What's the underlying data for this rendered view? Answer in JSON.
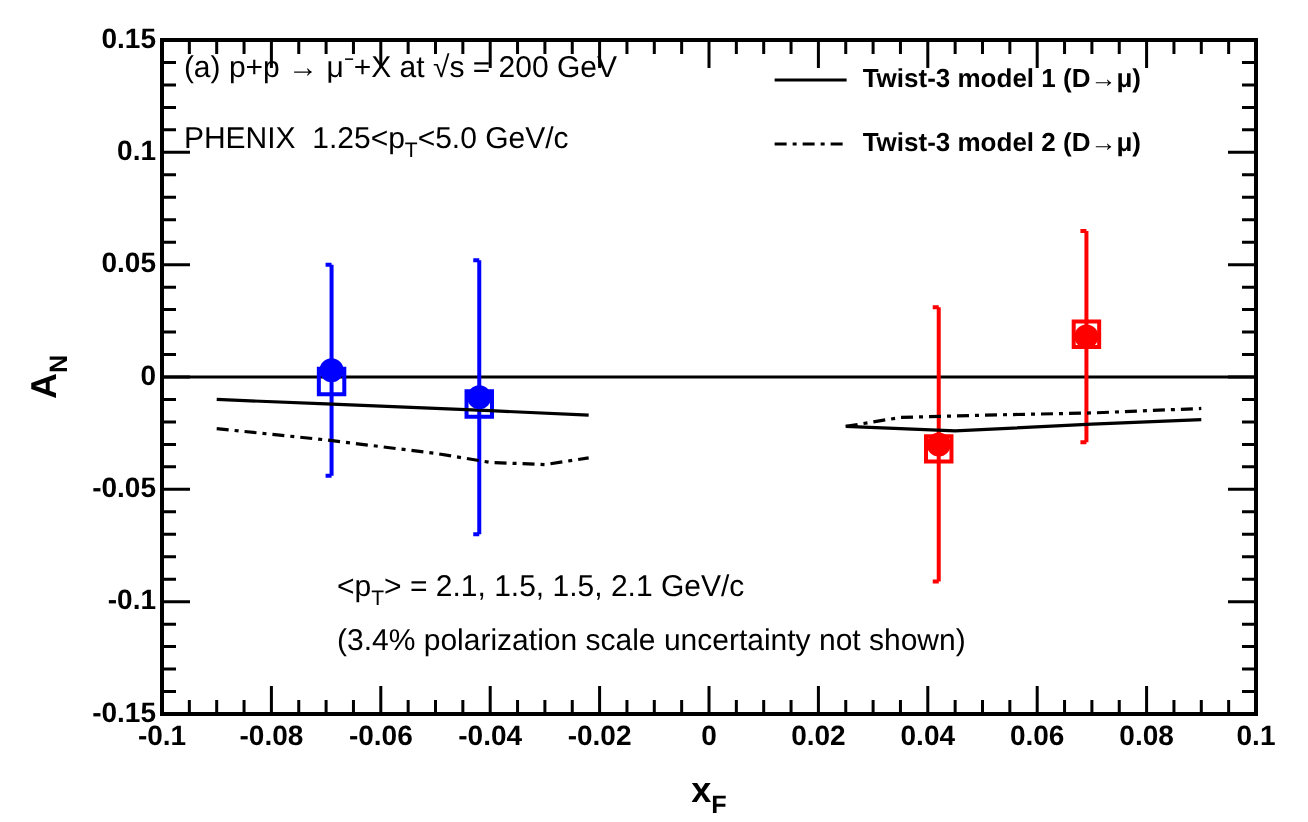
{
  "chart_data": {
    "type": "scatter",
    "xlabel": "x$_{F}$",
    "ylabel": "A$_{N}$",
    "annotations": [
      "(a) p+p → μ⁻+X at √s = 200 GeV",
      "PHENIX  1.25<p$_{T}$<5.0 GeV/c",
      "<p$_{T}$> = 2.1, 1.5, 1.5, 2.1 GeV/c",
      "(3.4% polarization scale uncertainty not shown)"
    ],
    "xlim": [
      -0.1,
      0.1
    ],
    "ylim": [
      -0.15,
      0.15
    ],
    "xticks": [
      -0.1,
      {
        "value": -0.095,
        "label": null
      },
      {
        "value": -0.09,
        "label": null
      },
      {
        "value": -0.085,
        "label": null
      },
      -0.08,
      {
        "value": -0.075,
        "label": null
      },
      {
        "value": -0.07,
        "label": null
      },
      {
        "value": -0.065,
        "label": null
      },
      -0.06,
      {
        "value": -0.055,
        "label": null
      },
      {
        "value": -0.05,
        "label": null
      },
      {
        "value": -0.045,
        "label": null
      },
      -0.04,
      {
        "value": -0.035,
        "label": null
      },
      {
        "value": -0.03,
        "label": null
      },
      {
        "value": -0.025,
        "label": null
      },
      -0.02,
      {
        "value": -0.015,
        "label": null
      },
      {
        "value": -0.01,
        "label": null
      },
      {
        "value": -0.005,
        "label": null
      },
      0,
      {
        "value": 0.005,
        "label": null
      },
      {
        "value": 0.01,
        "label": null
      },
      {
        "value": 0.015,
        "label": null
      },
      0.02,
      {
        "value": 0.025,
        "label": null
      },
      {
        "value": 0.03,
        "label": null
      },
      {
        "value": 0.035,
        "label": null
      },
      0.04,
      {
        "value": 0.045,
        "label": null
      },
      {
        "value": 0.05,
        "label": null
      },
      {
        "value": 0.055,
        "label": null
      },
      0.06,
      {
        "value": 0.065,
        "label": null
      },
      {
        "value": 0.07,
        "label": null
      },
      {
        "value": 0.075,
        "label": null
      },
      0.08,
      {
        "value": 0.085,
        "label": null
      },
      {
        "value": 0.09,
        "label": null
      },
      {
        "value": 0.095,
        "label": null
      },
      0.1
    ],
    "yticks": [
      -0.15,
      {
        "value": -0.14,
        "label": null
      },
      {
        "value": -0.13,
        "label": null
      },
      {
        "value": -0.12,
        "label": null
      },
      {
        "value": -0.11,
        "label": null
      },
      -0.1,
      {
        "value": -0.09,
        "label": null
      },
      {
        "value": -0.08,
        "label": null
      },
      {
        "value": -0.07,
        "label": null
      },
      {
        "value": -0.06,
        "label": null
      },
      -0.05,
      {
        "value": -0.04,
        "label": null
      },
      {
        "value": -0.03,
        "label": null
      },
      {
        "value": -0.02,
        "label": null
      },
      {
        "value": -0.01,
        "label": null
      },
      0,
      {
        "value": 0.01,
        "label": null
      },
      {
        "value": 0.02,
        "label": null
      },
      {
        "value": 0.03,
        "label": null
      },
      {
        "value": 0.04,
        "label": null
      },
      0.05,
      {
        "value": 0.06,
        "label": null
      },
      {
        "value": 0.07,
        "label": null
      },
      {
        "value": 0.08,
        "label": null
      },
      {
        "value": 0.09,
        "label": null
      },
      0.1,
      {
        "value": 0.11,
        "label": null
      },
      {
        "value": 0.12,
        "label": null
      },
      {
        "value": 0.13,
        "label": null
      },
      {
        "value": 0.14,
        "label": null
      },
      0.15
    ],
    "grid": false,
    "legend": "top right",
    "ref_lines": [
      {
        "axis": "y",
        "value": 0,
        "color": "#000000"
      }
    ],
    "series": [
      {
        "type": "line",
        "name": "Twist-3 model 1 (D→μ)",
        "color": "#000000",
        "line_style": "solid",
        "marker": "none",
        "x": [
          -0.09,
          -0.07,
          -0.05,
          -0.04,
          -0.022,
          0,
          0.025,
          0.045,
          0.07,
          0.09
        ],
        "values": [
          -0.01,
          -0.012,
          -0.014,
          -0.015,
          -0.017,
          null,
          -0.022,
          -0.024,
          -0.021,
          -0.019
        ]
      },
      {
        "type": "line",
        "name": "Twist-3 model 2 (D→μ)",
        "color": "#000000",
        "line_style": "dashed",
        "marker": "none",
        "x": [
          -0.09,
          -0.07,
          -0.05,
          -0.04,
          -0.03,
          -0.022,
          0,
          0.025,
          0.035,
          0.05,
          0.07,
          0.09
        ],
        "values": [
          -0.023,
          -0.028,
          -0.034,
          -0.038,
          -0.039,
          -0.036,
          null,
          -0.022,
          -0.018,
          -0.017,
          -0.016,
          -0.014
        ]
      },
      {
        "type": "scatter",
        "color": "#0000ff",
        "marker": "square",
        "x": [
          -0.069,
          -0.042
        ],
        "values": [
          -0.002,
          -0.012
        ]
      },
      {
        "type": "scatter",
        "color": "#ff0000",
        "marker": "square",
        "x": [
          0.042,
          0.069
        ],
        "values": [
          -0.032,
          0.019
        ]
      },
      {
        "type": "scatter",
        "color": "#0000ff",
        "marker": "circle",
        "x": [
          -0.069,
          -0.042
        ],
        "values": [
          0.003,
          -0.009
        ],
        "errors": [
          0.047,
          0.061
        ]
      },
      {
        "type": "scatter",
        "color": "#ff0000",
        "marker": "circle",
        "x": [
          0.042,
          0.069
        ],
        "values": [
          -0.03,
          0.018
        ],
        "errors": [
          0.061,
          0.047
        ]
      }
    ]
  }
}
